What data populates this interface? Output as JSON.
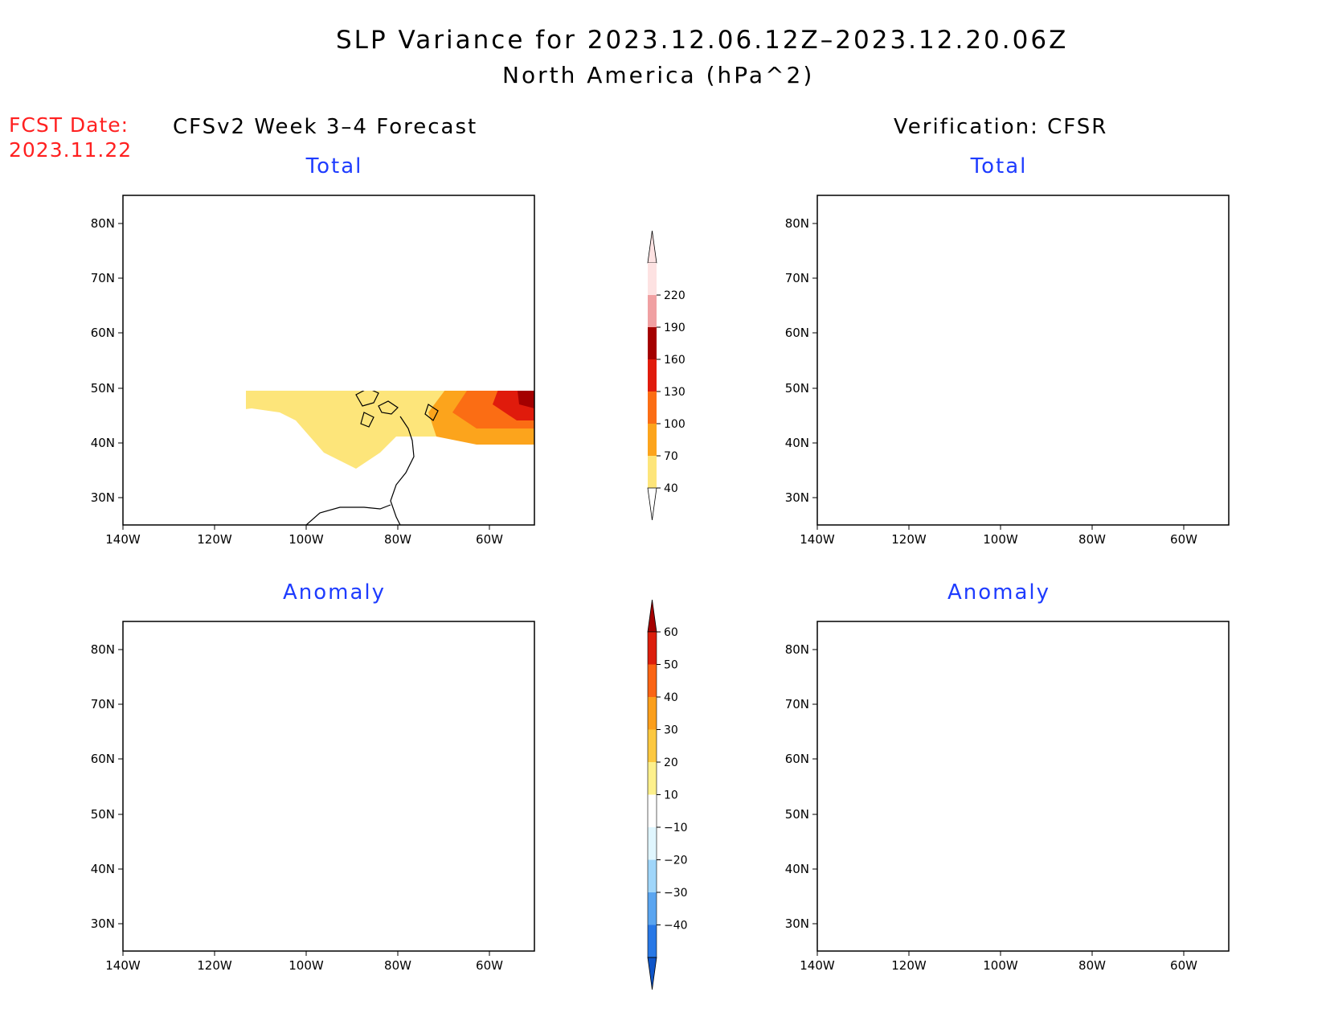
{
  "title": {
    "line1": "SLP Variance for 2023.12.06.12Z–2023.12.20.06Z",
    "line2": "North America (hPa^2)"
  },
  "fcst": {
    "label": "FCST Date:",
    "date": "2023.11.22"
  },
  "columns": {
    "left": "CFSv2 Week 3–4 Forecast",
    "right": "Verification: CFSR"
  },
  "panels": {
    "fcst_total": "Total",
    "fcst_anom": "Anomaly",
    "verif_total": "Total",
    "verif_anom": "Anomaly"
  },
  "axes": {
    "lat_ticks": [
      "80N",
      "70N",
      "60N",
      "50N",
      "40N",
      "30N"
    ],
    "lon_ticks": [
      "140W",
      "120W",
      "100W",
      "80W",
      "60W"
    ]
  },
  "colorbars": {
    "total": {
      "levels": [
        "40",
        "70",
        "100",
        "130",
        "160",
        "190",
        "220"
      ],
      "colors": [
        "#fde57a",
        "#fca41c",
        "#fb6d14",
        "#e01b0c",
        "#a40000",
        "#f0a0a2",
        "#fde2e2"
      ]
    },
    "anomaly": {
      "levels": [
        "60",
        "50",
        "40",
        "30",
        "20",
        "10",
        "−10",
        "−20",
        "−30",
        "−40"
      ],
      "colors": [
        "#a50000",
        "#dc1e0c",
        "#fa6414",
        "#fb9f1c",
        "#fcc840",
        "#fdf08c",
        "#ffffff",
        "#e0f6fe",
        "#a0d6fa",
        "#5aa5f0",
        "#2878e6",
        "#0f55c8"
      ]
    }
  }
}
